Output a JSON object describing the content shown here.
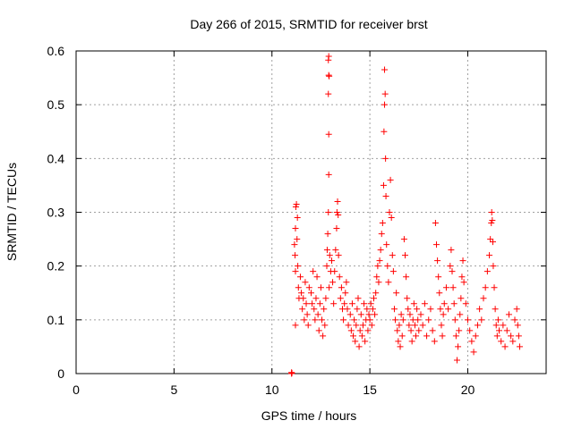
{
  "chart_data": {
    "type": "scatter",
    "title": "Day 266 of 2015, SRMTID for receiver brst",
    "xlabel": "GPS time / hours",
    "ylabel": "SRMTID / TECUs",
    "xlim": [
      0,
      24
    ],
    "ylim": [
      0,
      0.6
    ],
    "xticks": [
      0,
      5,
      10,
      15,
      20
    ],
    "yticks": [
      0,
      0.1,
      0.2,
      0.3,
      0.4,
      0.5,
      0.6
    ],
    "xtick_labels": [
      "0",
      "5",
      "10",
      "15",
      "20"
    ],
    "ytick_labels": [
      "0",
      "0.1",
      "0.2",
      "0.3",
      "0.4",
      "0.5",
      "0.6"
    ],
    "grid": true,
    "marker": "+",
    "color": "#ff0000",
    "series": [
      {
        "name": "SRMTID",
        "points": [
          [
            11.0,
            0.0
          ],
          [
            11.0,
            0.002
          ],
          [
            11.02,
            0.001
          ],
          [
            11.15,
            0.24
          ],
          [
            11.2,
            0.27
          ],
          [
            11.22,
            0.31
          ],
          [
            11.25,
            0.315
          ],
          [
            11.3,
            0.29
          ],
          [
            11.28,
            0.25
          ],
          [
            11.32,
            0.2
          ],
          [
            11.35,
            0.16
          ],
          [
            11.2,
            0.19
          ],
          [
            11.18,
            0.22
          ],
          [
            11.38,
            0.14
          ],
          [
            11.2,
            0.09
          ],
          [
            11.45,
            0.18
          ],
          [
            11.5,
            0.15
          ],
          [
            11.55,
            0.12
          ],
          [
            11.6,
            0.14
          ],
          [
            11.65,
            0.1
          ],
          [
            11.7,
            0.17
          ],
          [
            11.75,
            0.13
          ],
          [
            11.8,
            0.11
          ],
          [
            11.85,
            0.09
          ],
          [
            11.9,
            0.16
          ],
          [
            12.0,
            0.15
          ],
          [
            12.05,
            0.13
          ],
          [
            12.1,
            0.19
          ],
          [
            12.15,
            0.12
          ],
          [
            12.2,
            0.1
          ],
          [
            12.25,
            0.14
          ],
          [
            12.3,
            0.18
          ],
          [
            12.35,
            0.11
          ],
          [
            12.4,
            0.08
          ],
          [
            12.45,
            0.13
          ],
          [
            12.5,
            0.16
          ],
          [
            12.55,
            0.1
          ],
          [
            12.6,
            0.07
          ],
          [
            12.65,
            0.12
          ],
          [
            12.7,
            0.09
          ],
          [
            12.75,
            0.14
          ],
          [
            12.8,
            0.2
          ],
          [
            12.82,
            0.23
          ],
          [
            12.85,
            0.26
          ],
          [
            12.88,
            0.3
          ],
          [
            12.9,
            0.37
          ],
          [
            12.9,
            0.445
          ],
          [
            12.88,
            0.52
          ],
          [
            12.9,
            0.555
          ],
          [
            12.92,
            0.553
          ],
          [
            12.88,
            0.583
          ],
          [
            12.9,
            0.59
          ],
          [
            12.95,
            0.22
          ],
          [
            13.0,
            0.19
          ],
          [
            12.92,
            0.16
          ],
          [
            13.05,
            0.21
          ],
          [
            13.1,
            0.17
          ],
          [
            13.15,
            0.13
          ],
          [
            13.2,
            0.19
          ],
          [
            13.25,
            0.23
          ],
          [
            13.3,
            0.27
          ],
          [
            13.32,
            0.3
          ],
          [
            13.35,
            0.32
          ],
          [
            13.38,
            0.295
          ],
          [
            13.4,
            0.22
          ],
          [
            13.45,
            0.18
          ],
          [
            13.5,
            0.14
          ],
          [
            13.55,
            0.16
          ],
          [
            13.6,
            0.12
          ],
          [
            13.65,
            0.1
          ],
          [
            13.7,
            0.13
          ],
          [
            13.75,
            0.15
          ],
          [
            13.8,
            0.17
          ],
          [
            13.85,
            0.12
          ],
          [
            13.9,
            0.09
          ],
          [
            14.0,
            0.11
          ],
          [
            14.05,
            0.08
          ],
          [
            14.1,
            0.13
          ],
          [
            14.15,
            0.07
          ],
          [
            14.2,
            0.1
          ],
          [
            14.25,
            0.06
          ],
          [
            14.3,
            0.09
          ],
          [
            14.35,
            0.12
          ],
          [
            14.4,
            0.14
          ],
          [
            14.45,
            0.05
          ],
          [
            14.5,
            0.08
          ],
          [
            14.55,
            0.11
          ],
          [
            14.6,
            0.07
          ],
          [
            14.65,
            0.09
          ],
          [
            14.7,
            0.13
          ],
          [
            14.75,
            0.06
          ],
          [
            14.8,
            0.1
          ],
          [
            14.85,
            0.12
          ],
          [
            14.9,
            0.08
          ],
          [
            14.95,
            0.11
          ],
          [
            15.0,
            0.1
          ],
          [
            15.05,
            0.13
          ],
          [
            15.1,
            0.09
          ],
          [
            15.15,
            0.12
          ],
          [
            15.2,
            0.14
          ],
          [
            15.25,
            0.11
          ],
          [
            15.3,
            0.15
          ],
          [
            15.35,
            0.18
          ],
          [
            15.4,
            0.2
          ],
          [
            15.45,
            0.17
          ],
          [
            15.5,
            0.21
          ],
          [
            15.55,
            0.23
          ],
          [
            15.6,
            0.26
          ],
          [
            15.65,
            0.28
          ],
          [
            15.7,
            0.35
          ],
          [
            15.72,
            0.45
          ],
          [
            15.75,
            0.5
          ],
          [
            15.78,
            0.52
          ],
          [
            15.75,
            0.565
          ],
          [
            15.8,
            0.4
          ],
          [
            15.82,
            0.33
          ],
          [
            15.85,
            0.24
          ],
          [
            15.9,
            0.2
          ],
          [
            15.95,
            0.17
          ],
          [
            16.0,
            0.3
          ],
          [
            16.05,
            0.36
          ],
          [
            16.1,
            0.29
          ],
          [
            16.15,
            0.22
          ],
          [
            16.2,
            0.19
          ],
          [
            16.25,
            0.12
          ],
          [
            16.3,
            0.1
          ],
          [
            16.35,
            0.15
          ],
          [
            16.4,
            0.08
          ],
          [
            16.45,
            0.06
          ],
          [
            16.5,
            0.09
          ],
          [
            16.55,
            0.05
          ],
          [
            16.6,
            0.11
          ],
          [
            16.65,
            0.07
          ],
          [
            16.7,
            0.1
          ],
          [
            16.75,
            0.25
          ],
          [
            16.8,
            0.22
          ],
          [
            16.85,
            0.18
          ],
          [
            16.9,
            0.14
          ],
          [
            16.95,
            0.12
          ],
          [
            17.0,
            0.09
          ],
          [
            17.05,
            0.11
          ],
          [
            17.1,
            0.08
          ],
          [
            17.15,
            0.06
          ],
          [
            17.2,
            0.1
          ],
          [
            17.25,
            0.13
          ],
          [
            17.3,
            0.09
          ],
          [
            17.35,
            0.07
          ],
          [
            17.4,
            0.12
          ],
          [
            17.45,
            0.1
          ],
          [
            17.5,
            0.08
          ],
          [
            17.6,
            0.11
          ],
          [
            17.7,
            0.09
          ],
          [
            17.8,
            0.13
          ],
          [
            17.9,
            0.07
          ],
          [
            18.0,
            0.1
          ],
          [
            18.1,
            0.12
          ],
          [
            18.2,
            0.08
          ],
          [
            18.3,
            0.06
          ],
          [
            18.35,
            0.28
          ],
          [
            18.4,
            0.24
          ],
          [
            18.45,
            0.21
          ],
          [
            18.5,
            0.18
          ],
          [
            18.55,
            0.15
          ],
          [
            18.6,
            0.12
          ],
          [
            18.65,
            0.09
          ],
          [
            18.7,
            0.07
          ],
          [
            18.75,
            0.11
          ],
          [
            18.8,
            0.13
          ],
          [
            18.9,
            0.16
          ],
          [
            19.0,
            0.12
          ],
          [
            19.1,
            0.2
          ],
          [
            19.15,
            0.23
          ],
          [
            19.2,
            0.19
          ],
          [
            19.25,
            0.16
          ],
          [
            19.3,
            0.13
          ],
          [
            19.35,
            0.1
          ],
          [
            19.4,
            0.07
          ],
          [
            19.45,
            0.025
          ],
          [
            19.5,
            0.05
          ],
          [
            19.55,
            0.08
          ],
          [
            19.6,
            0.11
          ],
          [
            19.65,
            0.14
          ],
          [
            19.7,
            0.18
          ],
          [
            19.75,
            0.21
          ],
          [
            19.8,
            0.17
          ],
          [
            19.9,
            0.13
          ],
          [
            20.0,
            0.1
          ],
          [
            20.1,
            0.08
          ],
          [
            20.2,
            0.06
          ],
          [
            20.3,
            0.04
          ],
          [
            20.4,
            0.07
          ],
          [
            20.5,
            0.09
          ],
          [
            20.6,
            0.12
          ],
          [
            20.7,
            0.1
          ],
          [
            20.8,
            0.14
          ],
          [
            20.9,
            0.16
          ],
          [
            21.0,
            0.19
          ],
          [
            21.1,
            0.22
          ],
          [
            21.15,
            0.25
          ],
          [
            21.2,
            0.28
          ],
          [
            21.22,
            0.3
          ],
          [
            21.25,
            0.285
          ],
          [
            21.28,
            0.245
          ],
          [
            21.3,
            0.2
          ],
          [
            21.35,
            0.16
          ],
          [
            21.4,
            0.12
          ],
          [
            21.45,
            0.09
          ],
          [
            21.5,
            0.07
          ],
          [
            21.55,
            0.1
          ],
          [
            21.6,
            0.08
          ],
          [
            21.7,
            0.06
          ],
          [
            21.8,
            0.09
          ],
          [
            21.9,
            0.05
          ],
          [
            22.0,
            0.08
          ],
          [
            22.1,
            0.11
          ],
          [
            22.2,
            0.07
          ],
          [
            22.3,
            0.06
          ],
          [
            22.4,
            0.1
          ],
          [
            22.5,
            0.12
          ],
          [
            22.55,
            0.09
          ],
          [
            22.6,
            0.07
          ],
          [
            22.65,
            0.05
          ]
        ]
      }
    ]
  }
}
